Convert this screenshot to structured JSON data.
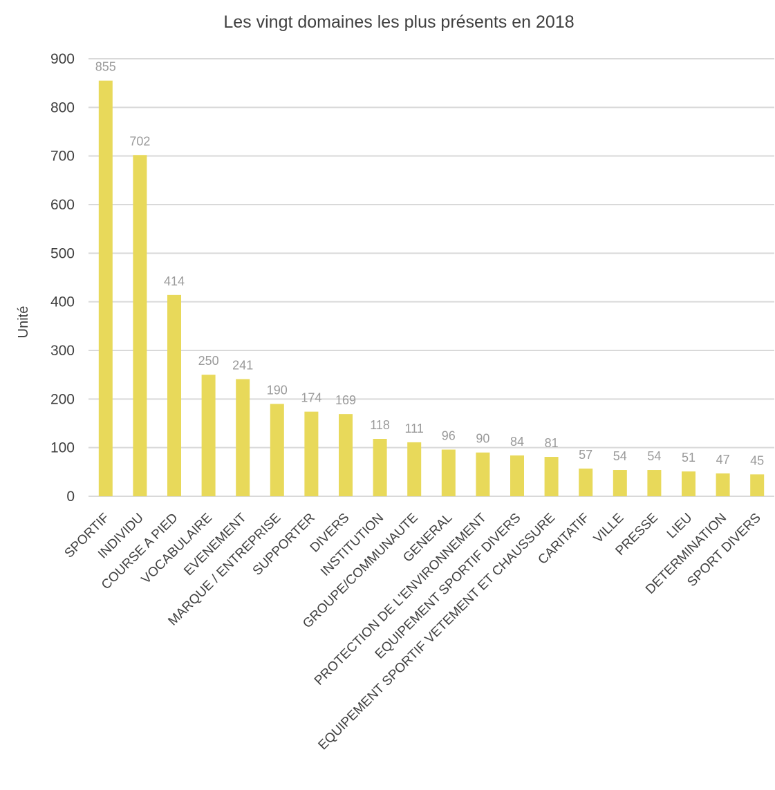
{
  "chart_data": {
    "type": "bar",
    "title": "Les vingt domaines les plus présents en 2018",
    "xlabel": "",
    "ylabel": "Unité",
    "ylim": [
      0,
      900
    ],
    "yticks": [
      0,
      100,
      200,
      300,
      400,
      500,
      600,
      700,
      800,
      900
    ],
    "grid": true,
    "bar_color": "#e8d95a",
    "categories": [
      "SPORTIF",
      "INDIVIDU",
      "COURSE A PIED",
      "VOCABULAIRE",
      "EVENEMENT",
      "MARQUE / ENTREPRISE",
      "SUPPORTER",
      "DIVERS",
      "INSTITUTION",
      "GROUPE/COMMUNAUTE",
      "GENERAL",
      "PROTECTION DE L'ENVIRONNEMENT",
      "EQUIPEMENT SPORTIF DIVERS",
      "EQUIPEMENT SPORTIF VETEMENT ET CHAUSSURE",
      "CARITATIF",
      "VILLE",
      "PRESSE",
      "LIEU",
      "DETERMINATION",
      "SPORT DIVERS"
    ],
    "values": [
      855,
      702,
      414,
      250,
      241,
      190,
      174,
      169,
      118,
      111,
      96,
      90,
      84,
      81,
      57,
      54,
      54,
      51,
      47,
      45
    ]
  }
}
